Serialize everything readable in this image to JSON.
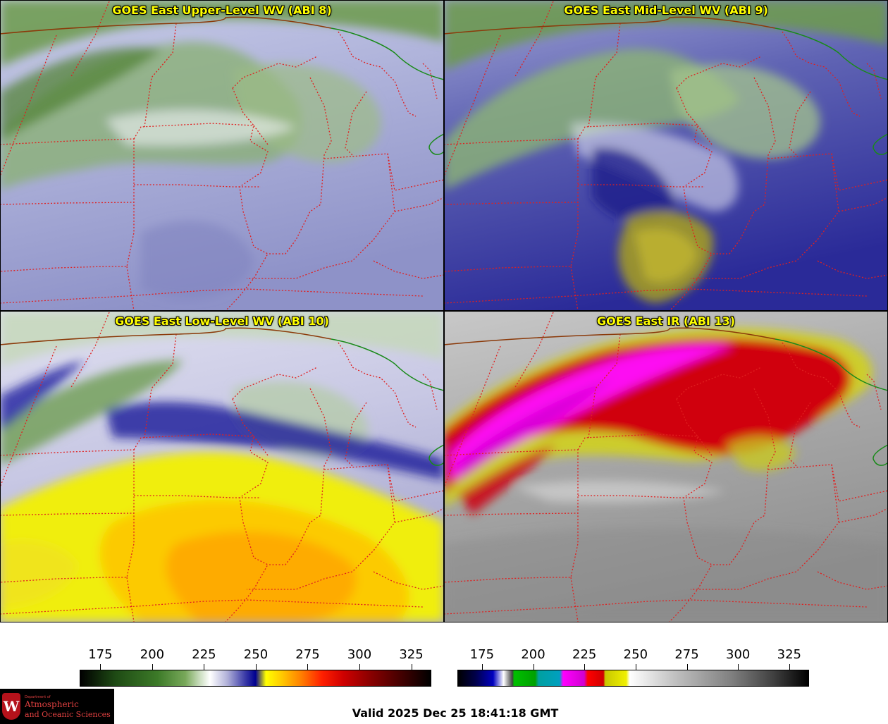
{
  "panels": [
    {
      "title": "GOES East Upper-Level WV (ABI 8)",
      "scheme": "wv_upper"
    },
    {
      "title": "GOES East Mid-Level WV (ABI 9)",
      "scheme": "wv_mid"
    },
    {
      "title": "GOES East Low-Level WV (ABI 10)",
      "scheme": "wv_low"
    },
    {
      "title": "GOES East IR (ABI 13)",
      "scheme": "ir"
    }
  ],
  "colorbars": [
    {
      "name": "water-vapor",
      "ticks": [
        "175",
        "200",
        "225",
        "250",
        "275",
        "300",
        "325"
      ],
      "min": 165,
      "max": 334
    },
    {
      "name": "infrared",
      "ticks": [
        "175",
        "200",
        "225",
        "250",
        "275",
        "300",
        "325"
      ],
      "min": 163,
      "max": 334
    }
  ],
  "valid_time": "Valid 2025 Dec 25 18:41:18 GMT",
  "logo": {
    "line1": "Department of",
    "line2": "Atmospheric",
    "line3": "and Oceanic Sciences",
    "mark": "W"
  },
  "colors": {
    "border_state": "#e02020",
    "border_country": "#8b3a0a",
    "border_canada": "#1a8a1a",
    "title_text": "#ffff00"
  }
}
